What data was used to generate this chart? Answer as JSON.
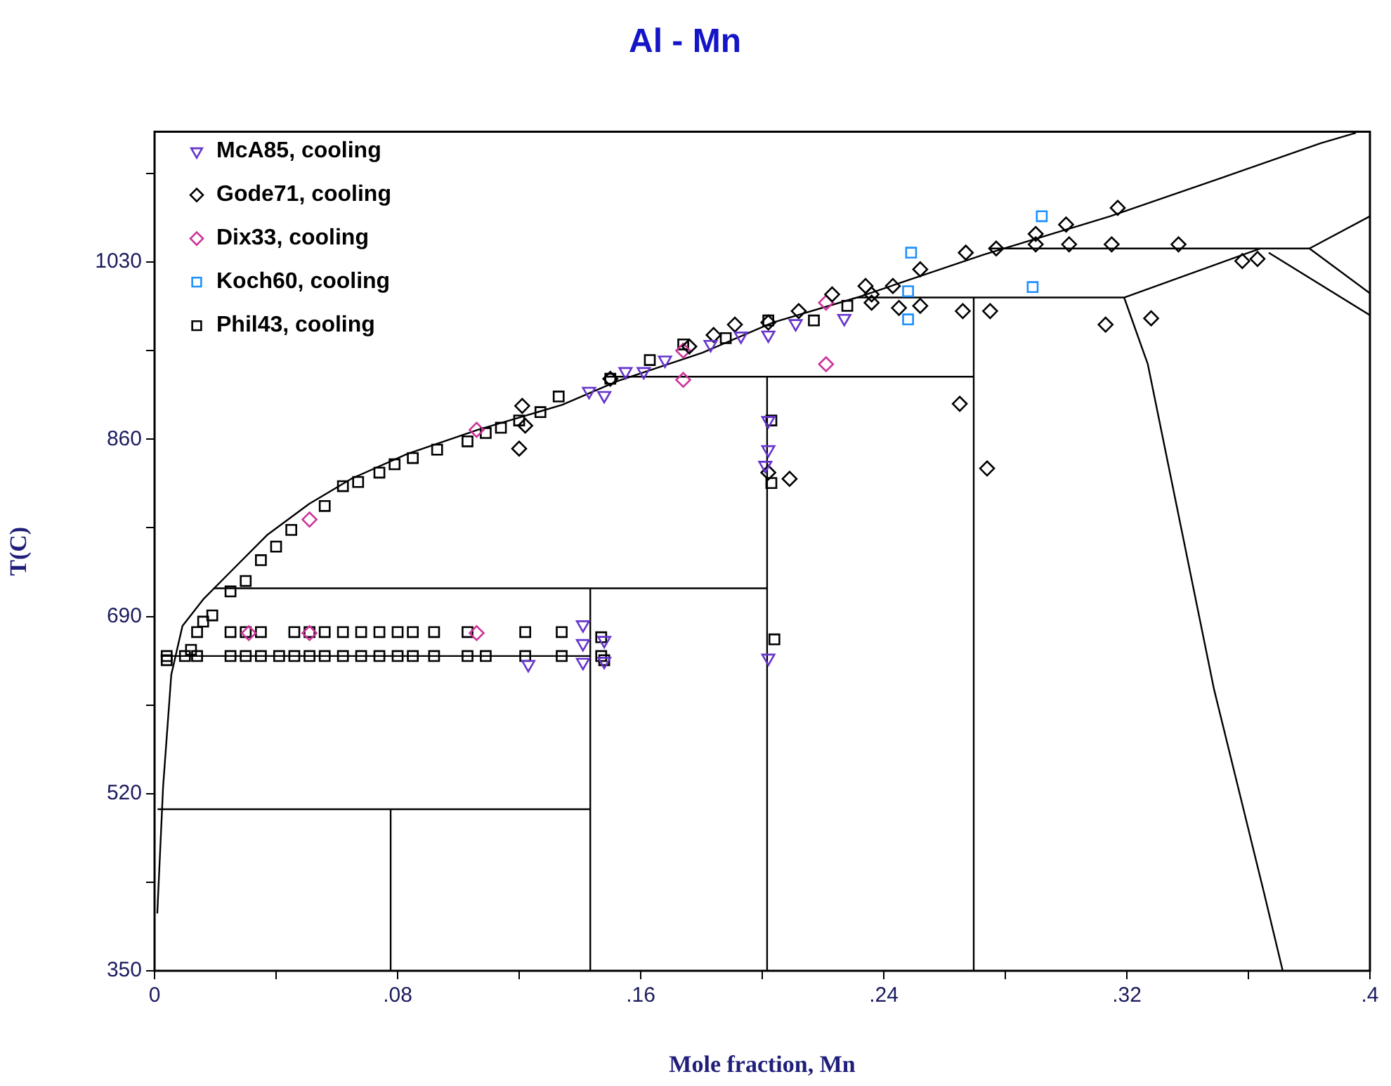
{
  "chart_data": {
    "type": "scatter",
    "title": "Al - Mn",
    "xlabel": "Mole fraction, Mn",
    "ylabel": "T(C)",
    "xlim": [
      0,
      0.4
    ],
    "xticks": [
      {
        "value": 0,
        "label": "0"
      },
      {
        "value": 0.04,
        "label": null
      },
      {
        "value": 0.08,
        "label": ".08"
      },
      {
        "value": 0.12,
        "label": null
      },
      {
        "value": 0.16,
        "label": ".16"
      },
      {
        "value": 0.2,
        "label": null
      },
      {
        "value": 0.24,
        "label": ".24"
      },
      {
        "value": 0.28,
        "label": null
      },
      {
        "value": 0.32,
        "label": ".32"
      },
      {
        "value": 0.36,
        "label": null
      },
      {
        "value": 0.4,
        "label": ".4"
      }
    ],
    "ylim": [
      350,
      1155
    ],
    "yticks": [
      350,
      {
        "value": 435,
        "label": null
      },
      520,
      {
        "value": 605,
        "label": null
      },
      690,
      {
        "value": 775,
        "label": null
      },
      860,
      {
        "value": 945,
        "label": null
      },
      1030,
      {
        "value": 1115,
        "label": null
      }
    ],
    "grid": false,
    "legend": "top left",
    "series": [
      {
        "name": "McA85, cooling",
        "color": "#6633cc",
        "marker": "triangle",
        "x": [
          0.143,
          0.148,
          0.155,
          0.161,
          0.168,
          0.183,
          0.193,
          0.202,
          0.211,
          0.227,
          0.202,
          0.201,
          0.202,
          0.202,
          0.123,
          0.141,
          0.141,
          0.141,
          0.148,
          0.148
        ],
        "values": [
          906,
          902,
          925,
          925,
          936,
          951,
          959,
          960,
          971,
          976,
          850,
          835,
          878,
          650,
          644,
          682,
          664,
          646,
          667,
          647
        ]
      },
      {
        "name": "Gode71, cooling",
        "color": "#000000",
        "marker": "diamond",
        "x": [
          0.121,
          0.122,
          0.12,
          0.15,
          0.176,
          0.184,
          0.191,
          0.202,
          0.212,
          0.223,
          0.234,
          0.236,
          0.236,
          0.243,
          0.245,
          0.252,
          0.252,
          0.266,
          0.267,
          0.275,
          0.277,
          0.29,
          0.29,
          0.265,
          0.274,
          0.209,
          0.3,
          0.317,
          0.301,
          0.315,
          0.337,
          0.358,
          0.363,
          0.313,
          0.328,
          0.202
        ],
        "values": [
          892,
          873,
          851,
          918,
          949,
          960,
          970,
          972,
          983,
          999,
          1007,
          999,
          991,
          1007,
          986,
          1023,
          988,
          983,
          1039,
          983,
          1043,
          1057,
          1047,
          894,
          832,
          822,
          1066,
          1082,
          1047,
          1047,
          1047,
          1031,
          1033,
          970,
          976,
          828
        ]
      },
      {
        "name": "Dix33, cooling",
        "color": "#cc3399",
        "marker": "diamond",
        "x": [
          0.106,
          0.031,
          0.051,
          0.106,
          0.051,
          0.174,
          0.174,
          0.221,
          0.221
        ],
        "values": [
          869,
          674,
          674,
          674,
          783,
          945,
          917,
          932,
          991
        ]
      },
      {
        "name": "Koch60, cooling",
        "color": "#1e90ff",
        "marker": "square",
        "x": [
          0.249,
          0.248,
          0.248,
          0.292,
          0.289
        ],
        "values": [
          1039,
          1002,
          975,
          1074,
          1006
        ]
      },
      {
        "name": "Phil43, cooling",
        "color": "#000000",
        "marker": "square",
        "x": [
          0.004,
          0.01,
          0.014,
          0.025,
          0.03,
          0.035,
          0.041,
          0.046,
          0.051,
          0.056,
          0.062,
          0.068,
          0.074,
          0.08,
          0.085,
          0.092,
          0.103,
          0.109,
          0.122,
          0.134,
          0.147,
          0.025,
          0.03,
          0.035,
          0.046,
          0.051,
          0.056,
          0.062,
          0.068,
          0.074,
          0.08,
          0.085,
          0.092,
          0.103,
          0.122,
          0.134,
          0.004,
          0.012,
          0.014,
          0.016,
          0.019,
          0.025,
          0.03,
          0.035,
          0.04,
          0.045,
          0.056,
          0.062,
          0.067,
          0.074,
          0.079,
          0.085,
          0.093,
          0.103,
          0.109,
          0.114,
          0.12,
          0.127,
          0.133,
          0.15,
          0.163,
          0.174,
          0.188,
          0.202,
          0.217,
          0.228,
          0.203,
          0.203,
          0.204,
          0.147,
          0.148
        ],
        "values": [
          652,
          652,
          652,
          652,
          652,
          652,
          652,
          652,
          652,
          652,
          652,
          652,
          652,
          652,
          652,
          652,
          652,
          652,
          652,
          652,
          652,
          675,
          675,
          675,
          675,
          675,
          675,
          675,
          675,
          675,
          675,
          675,
          675,
          675,
          675,
          675,
          648,
          658,
          675,
          685,
          691,
          714,
          724,
          744,
          757,
          773,
          796,
          815,
          819,
          828,
          836,
          842,
          850,
          858,
          866,
          871,
          878,
          886,
          901,
          918,
          936,
          951,
          957,
          974,
          974,
          988,
          878,
          818,
          668,
          670,
          648
        ]
      },
      {
        "type": "line",
        "color": "#000000",
        "marker": "none",
        "x": [
          0.0009,
          0.0028,
          0.0055,
          0.0092,
          0.0162,
          0.0254,
          0.037,
          0.0509,
          0.0647,
          0.0832,
          0.1064,
          0.1341,
          0.1526,
          0.1803,
          0.2035,
          0.2312,
          0.2728,
          0.3145,
          0.3514,
          0.3838,
          0.3954
        ],
        "values": [
          405,
          526,
          634,
          681,
          707,
          734,
          768,
          798,
          822,
          846,
          869,
          893,
          916,
          943,
          972,
          996,
          1037,
          1074,
          1111,
          1144,
          1154
        ]
      },
      {
        "type": "line",
        "color": "#000000",
        "marker": "none",
        "x": [
          0.002,
          0.1434
        ],
        "values": [
          652,
          652
        ]
      },
      {
        "type": "line",
        "color": "#000000",
        "marker": "none",
        "x": [
          0.0194,
          0.2016
        ],
        "values": [
          717,
          717
        ]
      },
      {
        "type": "line",
        "color": "#000000",
        "marker": "none",
        "x": [
          0.148,
          0.2696
        ],
        "values": [
          920,
          920
        ]
      },
      {
        "type": "line",
        "color": "#000000",
        "marker": "none",
        "x": [
          0.2312,
          0.3191
        ],
        "values": [
          996,
          996
        ]
      },
      {
        "type": "line",
        "color": "#000000",
        "marker": "none",
        "x": [
          0.2745,
          0.3801,
          0.4
        ],
        "values": [
          1043,
          1043,
          1000
        ]
      },
      {
        "type": "line",
        "color": "#000000",
        "marker": "none",
        "x": [
          0.001,
          0.1434
        ],
        "values": [
          505,
          505
        ]
      },
      {
        "type": "line",
        "color": "#000000",
        "marker": "none",
        "x": [
          0.0777,
          0.0777
        ],
        "values": [
          350,
          505
        ]
      },
      {
        "type": "line",
        "color": "#000000",
        "marker": "none",
        "x": [
          0.1434,
          0.1434
        ],
        "values": [
          350,
          717
        ]
      },
      {
        "type": "line",
        "color": "#000000",
        "marker": "none",
        "x": [
          0.2016,
          0.2016
        ],
        "values": [
          350,
          920
        ]
      },
      {
        "type": "line",
        "color": "#000000",
        "marker": "none",
        "x": [
          0.2696,
          0.2696
        ],
        "values": [
          350,
          996
        ]
      },
      {
        "type": "line",
        "color": "#000000",
        "marker": "none",
        "x": [
          0.3639,
          0.3191,
          0.3269,
          0.3487,
          0.3653,
          0.3713
        ],
        "values": [
          1043,
          996,
          932,
          620,
          423,
          350
        ]
      },
      {
        "type": "line",
        "color": "#000000",
        "marker": "none",
        "x": [
          0.3667,
          0.4
        ],
        "values": [
          1039,
          979
        ]
      },
      {
        "type": "line",
        "color": "#000000",
        "marker": "none",
        "x": [
          0.3801,
          0.4
        ],
        "values": [
          1043,
          1074
        ]
      }
    ]
  }
}
